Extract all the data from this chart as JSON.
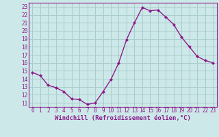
{
  "hours": [
    0,
    1,
    2,
    3,
    4,
    5,
    6,
    7,
    8,
    9,
    10,
    11,
    12,
    13,
    14,
    15,
    16,
    17,
    18,
    19,
    20,
    21,
    22,
    23
  ],
  "temps": [
    14.8,
    14.4,
    13.2,
    12.9,
    12.4,
    11.5,
    11.4,
    10.8,
    11.0,
    12.4,
    13.9,
    16.0,
    18.9,
    21.0,
    22.9,
    22.5,
    22.6,
    21.7,
    20.8,
    19.2,
    18.0,
    16.8,
    16.3,
    16.0
  ],
  "line_color": "#8b1a8b",
  "marker": "D",
  "marker_size": 2,
  "bg_color": "#cce8e8",
  "grid_color": "#aacccc",
  "tick_color": "#8b1a8b",
  "label_color": "#8b1a8b",
  "xlabel": "Windchill (Refroidissement éolien,°C)",
  "ylim": [
    10.5,
    23.5
  ],
  "xlim": [
    -0.5,
    23.5
  ],
  "yticks": [
    11,
    12,
    13,
    14,
    15,
    16,
    17,
    18,
    19,
    20,
    21,
    22,
    23
  ],
  "xticks": [
    0,
    1,
    2,
    3,
    4,
    5,
    6,
    7,
    8,
    9,
    10,
    11,
    12,
    13,
    14,
    15,
    16,
    17,
    18,
    19,
    20,
    21,
    22,
    23
  ],
  "spine_color": "#8b1a8b",
  "tick_fontsize": 5.5,
  "xlabel_fontsize": 6.5
}
